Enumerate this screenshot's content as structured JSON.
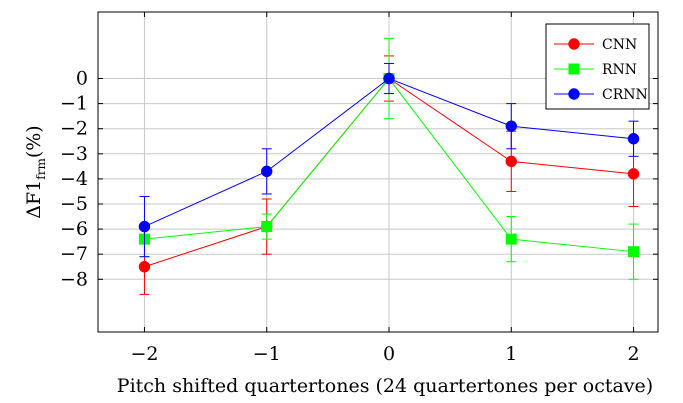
{
  "chart_data": {
    "type": "line",
    "xlabel": "Pitch shifted quartertones (24 quartertones per octave)",
    "ylabel": {
      "main": "ΔF1",
      "subscript": "frm",
      "suffix": "(%)"
    },
    "x": [
      -2,
      -1,
      0,
      1,
      2
    ],
    "x_tick_labels": [
      "−2",
      "−1",
      "0",
      "1",
      "2"
    ],
    "y_tick_values": [
      0,
      -1,
      -2,
      -3,
      -4,
      -5,
      -6,
      -7,
      -8
    ],
    "y_tick_labels": [
      "0",
      "−1",
      "−2",
      "−3",
      "−4",
      "−5",
      "−6",
      "−7",
      "−8"
    ],
    "xlim": [
      -2.38,
      2.2
    ],
    "ylim": [
      -10.1,
      2.65
    ],
    "grid": true,
    "legend_position": "top-right",
    "series": [
      {
        "name": "CNN",
        "color": "#ff0000",
        "marker": "circle",
        "values": [
          -7.5,
          -5.9,
          0.0,
          -3.3,
          -3.8
        ],
        "error_low": [
          -8.6,
          -7.0,
          -0.9,
          -4.5,
          -5.1
        ],
        "error_high": [
          -6.4,
          -4.8,
          0.9,
          -2.1,
          -2.5
        ]
      },
      {
        "name": "RNN",
        "color": "#00ff00",
        "marker": "square",
        "values": [
          -6.4,
          -5.9,
          0.0,
          -6.4,
          -6.9
        ],
        "error_low": [
          -7.1,
          -6.4,
          -1.6,
          -7.3,
          -8.0
        ],
        "error_high": [
          -5.9,
          -5.4,
          1.6,
          -5.5,
          -5.8
        ]
      },
      {
        "name": "CRNN",
        "color": "#0000ff",
        "marker": "circle",
        "values": [
          -5.9,
          -3.7,
          0.0,
          -1.9,
          -2.4
        ],
        "error_low": [
          -7.1,
          -4.6,
          -0.6,
          -2.8,
          -3.1
        ],
        "error_high": [
          -4.7,
          -2.8,
          0.6,
          -1.0,
          -1.7
        ]
      }
    ]
  }
}
